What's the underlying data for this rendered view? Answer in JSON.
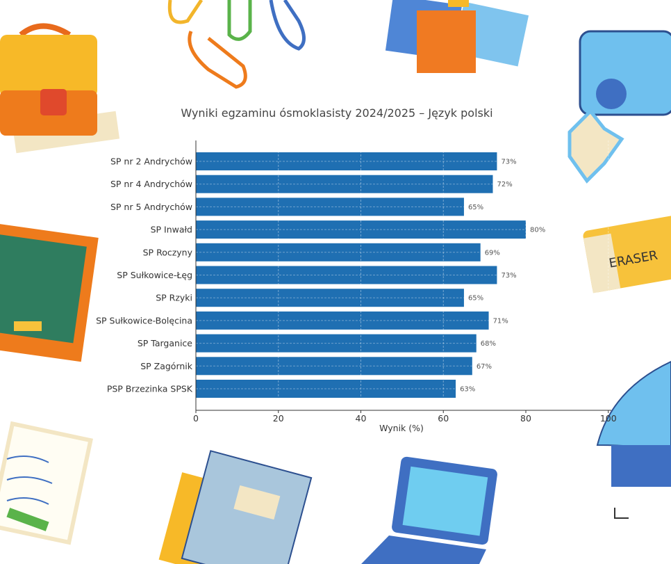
{
  "chart_data": {
    "type": "bar",
    "orientation": "horizontal",
    "title": "Wyniki egzaminu ósmoklasisty 2024/2025 – Język polski",
    "xlabel": "Wynik (%)",
    "ylabel": "",
    "xlim": [
      0,
      100
    ],
    "xticks": [
      "0",
      "20",
      "40",
      "60",
      "80",
      "100"
    ],
    "grid": true,
    "bar_color": "#1f6fb2",
    "categories": [
      "SP nr 2 Andrychów",
      "SP nr 4 Andrychów",
      "SP nr 5 Andrychów",
      "SP Inwałd",
      "SP Roczyny",
      "SP Sułkowice-Łęg",
      "SP Rzyki",
      "SP Sułkowice-Bolęcina",
      "SP Targanice",
      "SP Zagórnik",
      "PSP Brzezinka SPSK"
    ],
    "values": [
      73,
      72,
      65,
      80,
      69,
      73,
      65,
      71,
      68,
      67,
      63
    ],
    "data_labels": [
      "73%",
      "72%",
      "65%",
      "80%",
      "69%",
      "73%",
      "65%",
      "71%",
      "68%",
      "67%",
      "63%"
    ]
  },
  "decorations": {
    "eraser_text": "ERASER"
  }
}
